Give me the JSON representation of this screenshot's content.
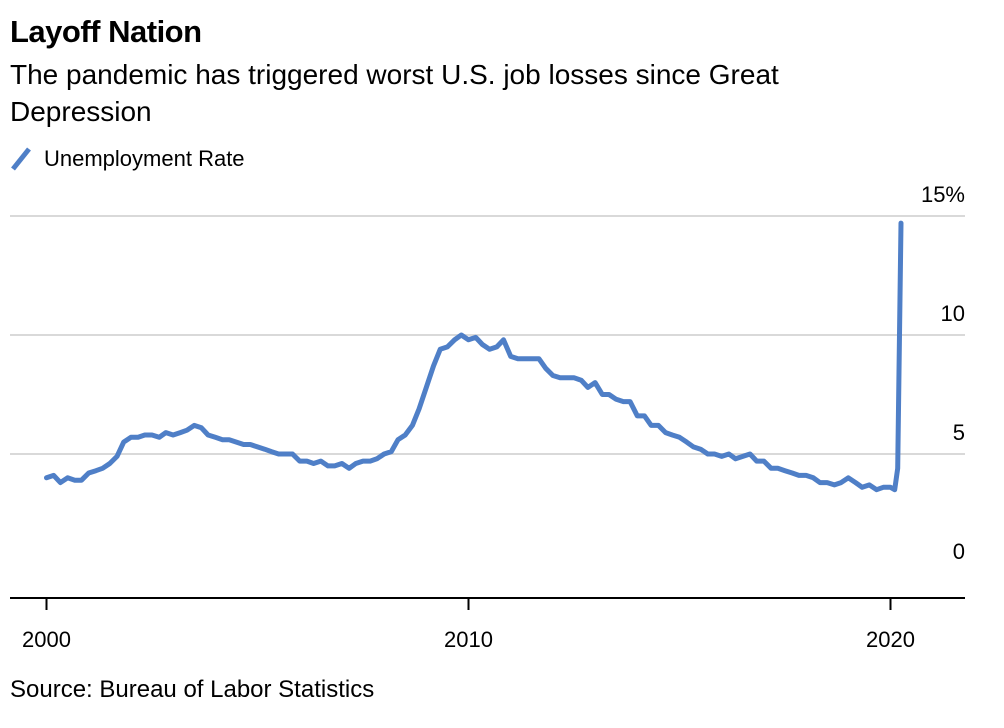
{
  "header": {
    "title": "Layoff Nation",
    "subtitle": "The pandemic has triggered worst U.S. job losses since Great Depression"
  },
  "legend": {
    "label": "Unemployment Rate"
  },
  "source": "Source: Bureau of Labor Statistics",
  "colors": {
    "line": "#4f7fc7",
    "grid": "#d9d9d9",
    "axis": "#000000"
  },
  "chart_data": {
    "type": "line",
    "title": "Layoff Nation",
    "subtitle": "The pandemic has triggered worst U.S. job losses since Great Depression",
    "xlabel": "",
    "ylabel": "",
    "xlim": [
      2000,
      2022.75
    ],
    "ylim": [
      0,
      15
    ],
    "x_ticks": [
      {
        "value": 2000,
        "label": "2000"
      },
      {
        "value": 2010,
        "label": "2010"
      },
      {
        "value": 2020,
        "label": "2020"
      }
    ],
    "y_ticks": [
      {
        "value": 0,
        "label": "0"
      },
      {
        "value": 5,
        "label": "5"
      },
      {
        "value": 10,
        "label": "10"
      },
      {
        "value": 15,
        "label": "15%"
      }
    ],
    "grid": true,
    "legend_position": "top-left",
    "series": [
      {
        "name": "Unemployment Rate",
        "points": [
          [
            2000.0,
            4.0
          ],
          [
            2000.17,
            4.1
          ],
          [
            2000.33,
            3.8
          ],
          [
            2000.5,
            4.0
          ],
          [
            2000.67,
            3.9
          ],
          [
            2000.83,
            3.9
          ],
          [
            2001.0,
            4.2
          ],
          [
            2001.17,
            4.3
          ],
          [
            2001.33,
            4.4
          ],
          [
            2001.5,
            4.6
          ],
          [
            2001.67,
            4.9
          ],
          [
            2001.83,
            5.5
          ],
          [
            2002.0,
            5.7
          ],
          [
            2002.17,
            5.7
          ],
          [
            2002.33,
            5.8
          ],
          [
            2002.5,
            5.8
          ],
          [
            2002.67,
            5.7
          ],
          [
            2002.83,
            5.9
          ],
          [
            2003.0,
            5.8
          ],
          [
            2003.17,
            5.9
          ],
          [
            2003.33,
            6.0
          ],
          [
            2003.5,
            6.2
          ],
          [
            2003.67,
            6.1
          ],
          [
            2003.83,
            5.8
          ],
          [
            2004.0,
            5.7
          ],
          [
            2004.17,
            5.6
          ],
          [
            2004.33,
            5.6
          ],
          [
            2004.5,
            5.5
          ],
          [
            2004.67,
            5.4
          ],
          [
            2004.83,
            5.4
          ],
          [
            2005.0,
            5.3
          ],
          [
            2005.17,
            5.2
          ],
          [
            2005.33,
            5.1
          ],
          [
            2005.5,
            5.0
          ],
          [
            2005.67,
            5.0
          ],
          [
            2005.83,
            5.0
          ],
          [
            2006.0,
            4.7
          ],
          [
            2006.17,
            4.7
          ],
          [
            2006.33,
            4.6
          ],
          [
            2006.5,
            4.7
          ],
          [
            2006.67,
            4.5
          ],
          [
            2006.83,
            4.5
          ],
          [
            2007.0,
            4.6
          ],
          [
            2007.17,
            4.4
          ],
          [
            2007.33,
            4.6
          ],
          [
            2007.5,
            4.7
          ],
          [
            2007.67,
            4.7
          ],
          [
            2007.83,
            4.8
          ],
          [
            2008.0,
            5.0
          ],
          [
            2008.17,
            5.1
          ],
          [
            2008.33,
            5.6
          ],
          [
            2008.5,
            5.8
          ],
          [
            2008.67,
            6.2
          ],
          [
            2008.83,
            6.9
          ],
          [
            2009.0,
            7.8
          ],
          [
            2009.17,
            8.7
          ],
          [
            2009.33,
            9.4
          ],
          [
            2009.5,
            9.5
          ],
          [
            2009.67,
            9.8
          ],
          [
            2009.83,
            10.0
          ],
          [
            2010.0,
            9.8
          ],
          [
            2010.17,
            9.9
          ],
          [
            2010.33,
            9.6
          ],
          [
            2010.5,
            9.4
          ],
          [
            2010.67,
            9.5
          ],
          [
            2010.83,
            9.8
          ],
          [
            2011.0,
            9.1
          ],
          [
            2011.17,
            9.0
          ],
          [
            2011.33,
            9.0
          ],
          [
            2011.5,
            9.0
          ],
          [
            2011.67,
            9.0
          ],
          [
            2011.83,
            8.6
          ],
          [
            2012.0,
            8.3
          ],
          [
            2012.17,
            8.2
          ],
          [
            2012.33,
            8.2
          ],
          [
            2012.5,
            8.2
          ],
          [
            2012.67,
            8.1
          ],
          [
            2012.83,
            7.8
          ],
          [
            2013.0,
            8.0
          ],
          [
            2013.17,
            7.5
          ],
          [
            2013.33,
            7.5
          ],
          [
            2013.5,
            7.3
          ],
          [
            2013.67,
            7.2
          ],
          [
            2013.83,
            7.2
          ],
          [
            2014.0,
            6.6
          ],
          [
            2014.17,
            6.6
          ],
          [
            2014.33,
            6.2
          ],
          [
            2014.5,
            6.2
          ],
          [
            2014.67,
            5.9
          ],
          [
            2014.83,
            5.8
          ],
          [
            2015.0,
            5.7
          ],
          [
            2015.17,
            5.5
          ],
          [
            2015.33,
            5.3
          ],
          [
            2015.5,
            5.2
          ],
          [
            2015.67,
            5.0
          ],
          [
            2015.83,
            5.0
          ],
          [
            2016.0,
            4.9
          ],
          [
            2016.17,
            5.0
          ],
          [
            2016.33,
            4.8
          ],
          [
            2016.5,
            4.9
          ],
          [
            2016.67,
            5.0
          ],
          [
            2016.83,
            4.7
          ],
          [
            2017.0,
            4.7
          ],
          [
            2017.17,
            4.4
          ],
          [
            2017.33,
            4.4
          ],
          [
            2017.5,
            4.3
          ],
          [
            2017.67,
            4.2
          ],
          [
            2017.83,
            4.1
          ],
          [
            2018.0,
            4.1
          ],
          [
            2018.17,
            4.0
          ],
          [
            2018.33,
            3.8
          ],
          [
            2018.5,
            3.8
          ],
          [
            2018.67,
            3.7
          ],
          [
            2018.83,
            3.8
          ],
          [
            2019.0,
            4.0
          ],
          [
            2019.17,
            3.8
          ],
          [
            2019.33,
            3.6
          ],
          [
            2019.5,
            3.7
          ],
          [
            2019.67,
            3.5
          ],
          [
            2019.83,
            3.6
          ],
          [
            2020.0,
            3.6
          ],
          [
            2020.1,
            3.5
          ],
          [
            2020.17,
            4.4
          ],
          [
            2020.25,
            14.7
          ]
        ]
      }
    ]
  }
}
